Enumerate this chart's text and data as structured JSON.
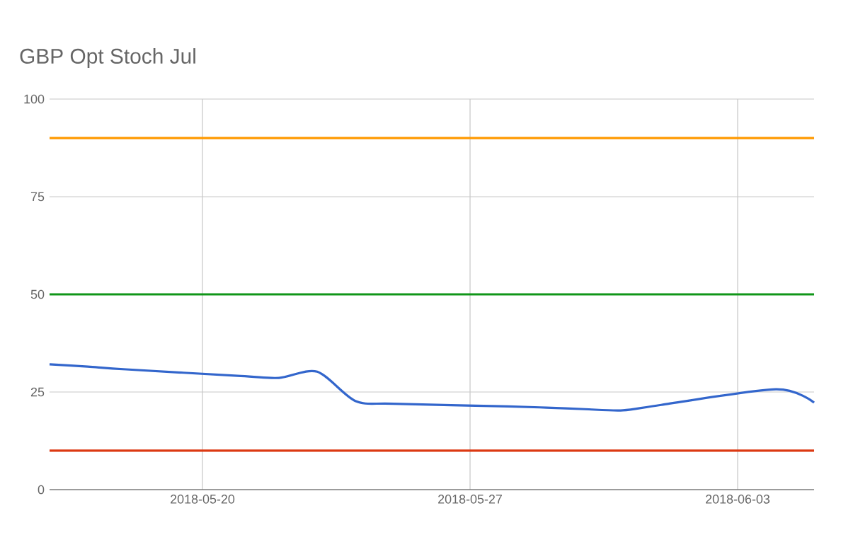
{
  "chart_data": {
    "type": "line",
    "title": "GBP Opt Stoch Jul",
    "x": [
      "2018-05-16",
      "2018-05-17",
      "2018-05-18",
      "2018-05-21",
      "2018-05-22",
      "2018-05-23",
      "2018-05-24",
      "2018-05-25",
      "2018-05-28",
      "2018-05-29",
      "2018-05-30",
      "2018-05-31",
      "2018-06-01",
      "2018-06-04",
      "2018-06-05"
    ],
    "series": [
      {
        "color": "#3366cc",
        "values": [
          32.1,
          31.5,
          30.8,
          29.1,
          28.6,
          30.2,
          22.7,
          22.0,
          21.3,
          21.0,
          20.6,
          20.3,
          21.7,
          25.7,
          22.3
        ]
      }
    ],
    "xlim": [
      "2018-05-16",
      "2018-06-05"
    ],
    "xticks": [
      {
        "value": "2018-05-20",
        "label": "2018-05-20"
      },
      {
        "value": "2018-05-27",
        "label": "2018-05-27"
      },
      {
        "value": "2018-06-03",
        "label": "2018-06-03"
      }
    ],
    "ylim": [
      0,
      100
    ],
    "yticks": [
      0,
      25,
      50,
      75,
      100
    ],
    "grid": true,
    "ref_lines": [
      {
        "axis": "y",
        "value": 90,
        "color": "#ff9900"
      },
      {
        "axis": "y",
        "value": 50,
        "color": "#109618"
      },
      {
        "axis": "y",
        "value": 10,
        "color": "#dc3912"
      }
    ]
  }
}
